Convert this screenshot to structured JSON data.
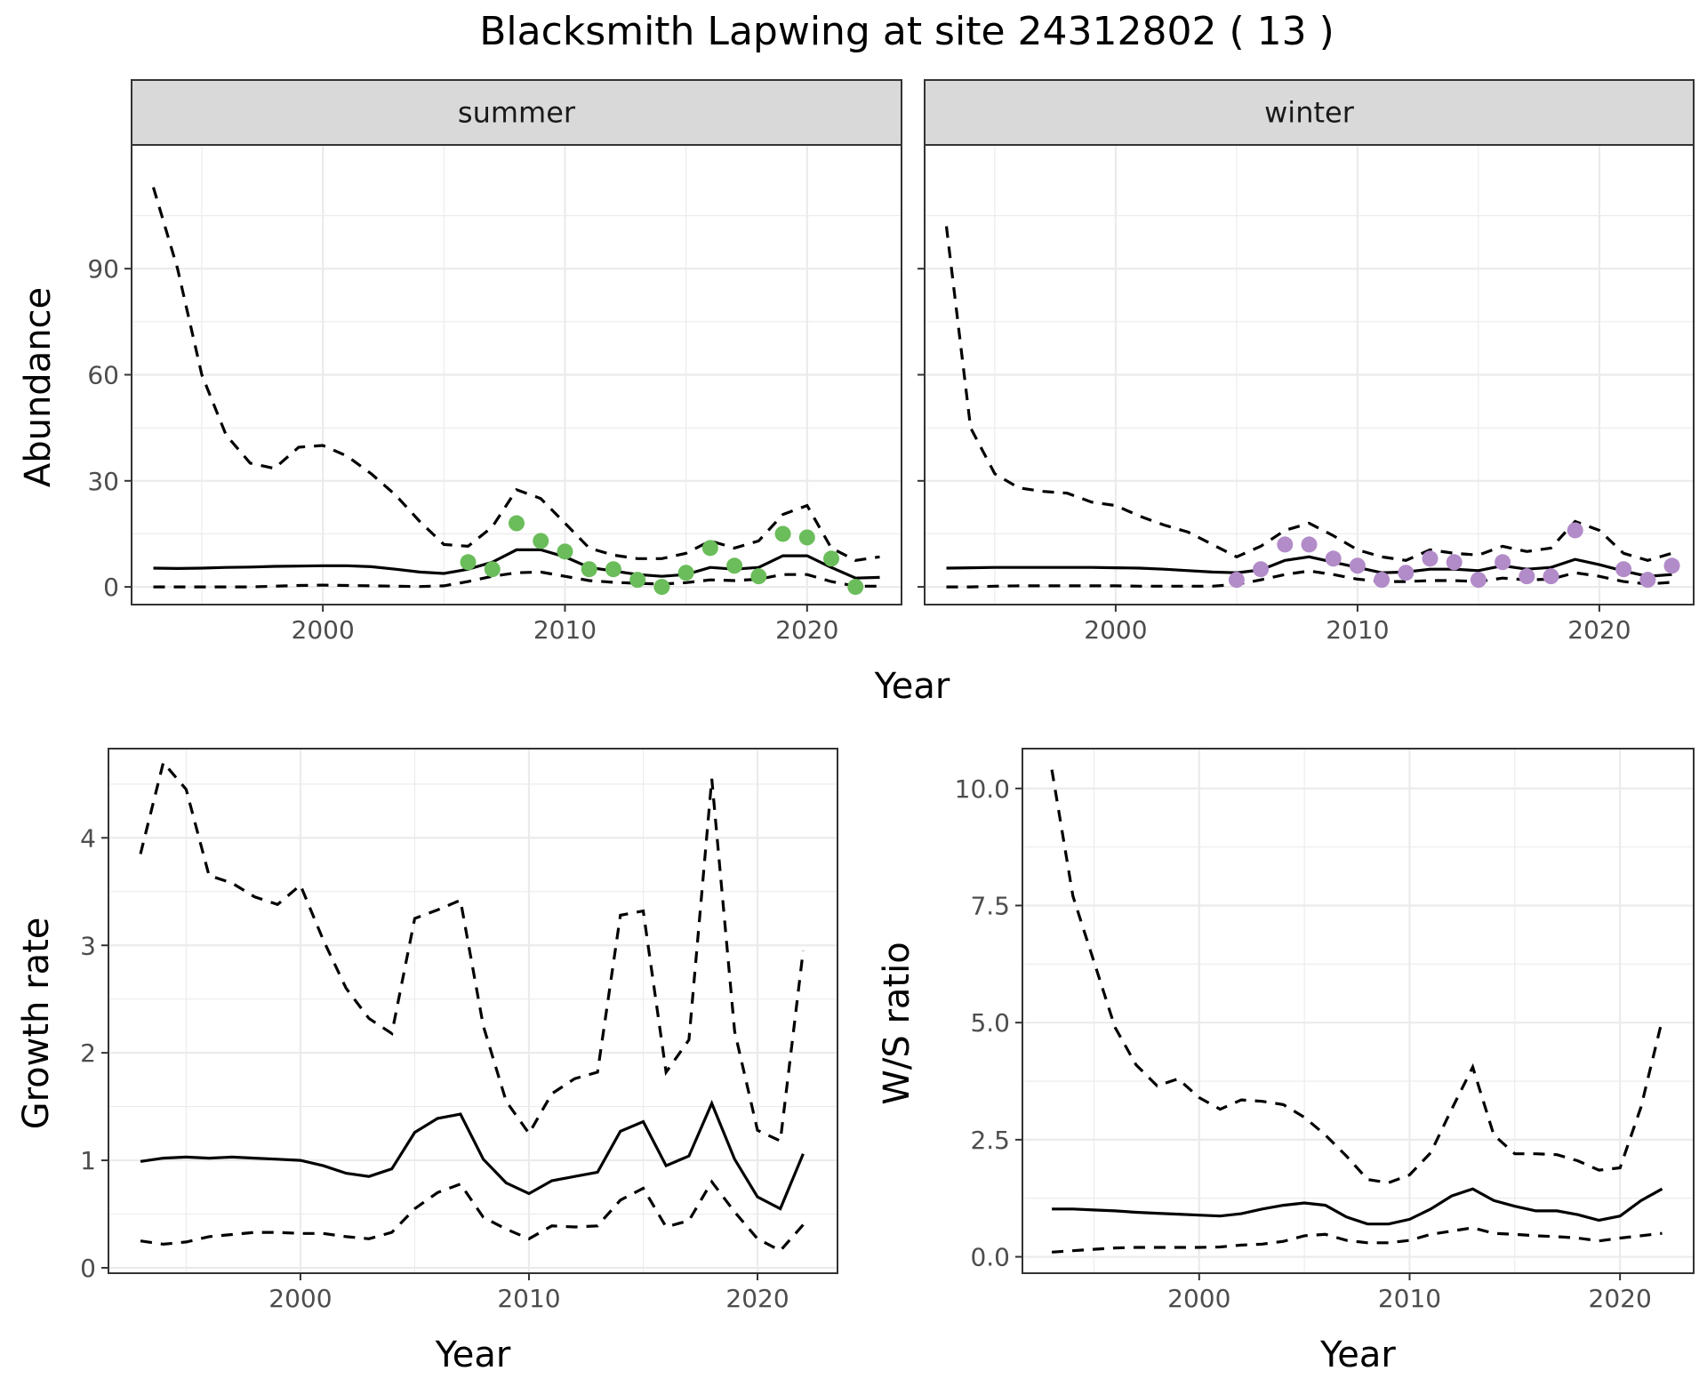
{
  "title": "Blacksmith Lapwing at site 24312802 ( 13 )",
  "colors": {
    "summer_points": "#6ABD5A",
    "winter_points": "#B28BC9"
  },
  "chart_data": [
    {
      "type": "line",
      "facet": "summer",
      "xlabel": "Year",
      "ylabel": "Abundance",
      "xlim": [
        1992.1,
        2023.9
      ],
      "ylim": [
        -5,
        125
      ],
      "xticks": [
        2000,
        2010,
        2020
      ],
      "yticks": [
        0,
        30,
        60,
        90
      ],
      "grid": true,
      "x": [
        1993,
        1994,
        1995,
        1996,
        1997,
        1998,
        1999,
        2000,
        2001,
        2002,
        2003,
        2004,
        2005,
        2006,
        2007,
        2008,
        2009,
        2010,
        2011,
        2012,
        2013,
        2014,
        2015,
        2016,
        2017,
        2018,
        2019,
        2020,
        2021,
        2022,
        2023
      ],
      "series": [
        {
          "values": [
            5.3,
            5.2,
            5.3,
            5.5,
            5.6,
            5.8,
            5.9,
            6.0,
            6.0,
            5.7,
            5.0,
            4.2,
            3.8,
            5.0,
            7.0,
            10.5,
            10.5,
            8.5,
            5.5,
            4.5,
            3.5,
            3.0,
            3.5,
            5.5,
            5.0,
            5.5,
            8.8,
            8.8,
            5.5,
            2.5,
            2.7
          ]
        },
        {
          "values": [
            113,
            90,
            60,
            43,
            35,
            33.5,
            39.5,
            40,
            37,
            32,
            26,
            18.5,
            12,
            11.5,
            17,
            27.5,
            25,
            18,
            11,
            9,
            8,
            8,
            9.5,
            13,
            11,
            13,
            20.5,
            23,
            11,
            7.5,
            8.5
          ]
        },
        {
          "values": [
            0,
            0,
            0,
            0,
            0,
            0.2,
            0.4,
            0.5,
            0.4,
            0.3,
            0.2,
            0.1,
            0.3,
            1.5,
            3.0,
            4.0,
            4.2,
            3.0,
            1.8,
            1.3,
            1.0,
            0.8,
            1.2,
            2.0,
            1.8,
            2.2,
            3.5,
            3.5,
            1.5,
            0.2,
            0.2
          ]
        }
      ],
      "observations": {
        "x": [
          2006,
          2007,
          2008,
          2009,
          2010,
          2011,
          2012,
          2013,
          2014,
          2015,
          2016,
          2017,
          2018,
          2019,
          2020,
          2021,
          2022
        ],
        "y": [
          7,
          5,
          18,
          13,
          10,
          5,
          5,
          2,
          0,
          4,
          11,
          6,
          3,
          15,
          14,
          8,
          0
        ]
      }
    },
    {
      "type": "line",
      "facet": "winter",
      "xlabel": "Year",
      "ylabel": "Abundance",
      "xlim": [
        1992.1,
        2023.9
      ],
      "ylim": [
        -5,
        125
      ],
      "xticks": [
        2000,
        2010,
        2020
      ],
      "yticks": [
        0,
        30,
        60,
        90
      ],
      "grid": true,
      "x": [
        1993,
        1994,
        1995,
        1996,
        1997,
        1998,
        1999,
        2000,
        2001,
        2002,
        2003,
        2004,
        2005,
        2006,
        2007,
        2008,
        2009,
        2010,
        2011,
        2012,
        2013,
        2014,
        2015,
        2016,
        2017,
        2018,
        2019,
        2020,
        2021,
        2022,
        2023
      ],
      "series": [
        {
          "values": [
            5.3,
            5.4,
            5.5,
            5.5,
            5.5,
            5.5,
            5.5,
            5.4,
            5.3,
            5.0,
            4.6,
            4.2,
            4.0,
            4.8,
            7.5,
            8.5,
            7.0,
            5.5,
            4.0,
            4.2,
            5.0,
            5.0,
            4.6,
            6.0,
            5.0,
            5.5,
            7.8,
            6.3,
            4.5,
            3.0,
            3.5
          ]
        },
        {
          "values": [
            102,
            45,
            32,
            28,
            27,
            26.5,
            24,
            23,
            20,
            17.5,
            15.5,
            12,
            8.5,
            11.5,
            16,
            18,
            14.5,
            10.5,
            8.5,
            7.5,
            10.5,
            9.5,
            9,
            11.5,
            10,
            11,
            18.5,
            16,
            9.5,
            7.5,
            9.5
          ]
        },
        {
          "values": [
            0,
            0,
            0.2,
            0.3,
            0.3,
            0.3,
            0.3,
            0.3,
            0.2,
            0.2,
            0.2,
            0.2,
            0.7,
            2.0,
            3.5,
            4.5,
            3.5,
            2.2,
            1.5,
            1.5,
            1.8,
            1.8,
            1.5,
            2.5,
            2.0,
            2.2,
            4.0,
            3.0,
            1.5,
            0.8,
            1.3
          ]
        }
      ],
      "observations": {
        "x": [
          2005,
          2006,
          2007,
          2008,
          2009,
          2010,
          2011,
          2012,
          2013,
          2014,
          2015,
          2016,
          2017,
          2018,
          2019,
          2021,
          2022,
          2023
        ],
        "y": [
          2,
          5,
          12,
          12,
          8,
          6,
          2,
          4,
          8,
          7,
          2,
          7,
          3,
          3,
          16,
          5,
          2,
          6
        ]
      }
    },
    {
      "type": "line",
      "xlabel": "Year",
      "ylabel": "Growth rate",
      "xlim": [
        1991.6,
        2023.5
      ],
      "ylim": [
        -0.05,
        4.83
      ],
      "xticks": [
        2000,
        2010,
        2020
      ],
      "yticks": [
        0,
        1,
        2,
        3,
        4
      ],
      "grid": true,
      "x": [
        1993,
        1994,
        1995,
        1996,
        1997,
        1998,
        1999,
        2000,
        2001,
        2002,
        2003,
        2004,
        2005,
        2006,
        2007,
        2008,
        2009,
        2010,
        2011,
        2012,
        2013,
        2014,
        2015,
        2016,
        2017,
        2018,
        2019,
        2020,
        2021,
        2022
      ],
      "series": [
        {
          "values": [
            0.99,
            1.02,
            1.03,
            1.02,
            1.03,
            1.02,
            1.01,
            1.0,
            0.95,
            0.88,
            0.85,
            0.92,
            1.26,
            1.39,
            1.43,
            1.01,
            0.79,
            0.69,
            0.81,
            0.85,
            0.89,
            1.27,
            1.36,
            0.95,
            1.04,
            1.53,
            1.01,
            0.66,
            0.55,
            1.06
          ]
        },
        {
          "values": [
            3.85,
            4.7,
            4.45,
            3.65,
            3.58,
            3.45,
            3.38,
            3.56,
            3.05,
            2.6,
            2.32,
            2.18,
            3.25,
            3.33,
            3.42,
            2.25,
            1.55,
            1.25,
            1.62,
            1.76,
            1.82,
            3.28,
            3.32,
            1.82,
            2.12,
            4.55,
            2.2,
            1.28,
            1.18,
            2.95
          ]
        },
        {
          "values": [
            0.25,
            0.22,
            0.24,
            0.29,
            0.31,
            0.33,
            0.33,
            0.32,
            0.32,
            0.29,
            0.27,
            0.33,
            0.55,
            0.7,
            0.78,
            0.47,
            0.36,
            0.27,
            0.39,
            0.38,
            0.39,
            0.63,
            0.74,
            0.38,
            0.44,
            0.8,
            0.52,
            0.27,
            0.16,
            0.4
          ]
        }
      ]
    },
    {
      "type": "line",
      "xlabel": "Year",
      "ylabel": "W/S ratio",
      "xlim": [
        1991.6,
        2023.5
      ],
      "ylim": [
        -0.35,
        10.85
      ],
      "xticks": [
        2000,
        2010,
        2020
      ],
      "yticks": [
        0.0,
        2.5,
        5.0,
        7.5,
        10.0
      ],
      "ytick_labels": [
        "0.0",
        "2.5",
        "5.0",
        "7.5",
        "10.0"
      ],
      "grid": true,
      "x": [
        1993,
        1994,
        1995,
        1996,
        1997,
        1998,
        1999,
        2000,
        2001,
        2002,
        2003,
        2004,
        2005,
        2006,
        2007,
        2008,
        2009,
        2010,
        2011,
        2012,
        2013,
        2014,
        2015,
        2016,
        2017,
        2018,
        2019,
        2020,
        2021,
        2022
      ],
      "series": [
        {
          "values": [
            1.02,
            1.02,
            1.0,
            0.98,
            0.95,
            0.93,
            0.91,
            0.89,
            0.87,
            0.92,
            1.02,
            1.1,
            1.15,
            1.1,
            0.85,
            0.7,
            0.7,
            0.8,
            1.02,
            1.3,
            1.45,
            1.2,
            1.08,
            0.98,
            0.98,
            0.9,
            0.78,
            0.87,
            1.2,
            1.45
          ]
        },
        {
          "values": [
            10.4,
            7.7,
            6.3,
            4.9,
            4.1,
            3.65,
            3.8,
            3.4,
            3.15,
            3.35,
            3.32,
            3.25,
            2.98,
            2.6,
            2.15,
            1.65,
            1.58,
            1.75,
            2.22,
            3.15,
            4.05,
            2.6,
            2.2,
            2.2,
            2.18,
            2.05,
            1.85,
            1.9,
            3.2,
            5.05
          ]
        },
        {
          "values": [
            0.1,
            0.13,
            0.16,
            0.19,
            0.2,
            0.2,
            0.2,
            0.2,
            0.21,
            0.25,
            0.27,
            0.33,
            0.45,
            0.48,
            0.35,
            0.3,
            0.3,
            0.35,
            0.48,
            0.55,
            0.62,
            0.5,
            0.48,
            0.45,
            0.43,
            0.4,
            0.34,
            0.4,
            0.45,
            0.5
          ]
        }
      ]
    }
  ]
}
